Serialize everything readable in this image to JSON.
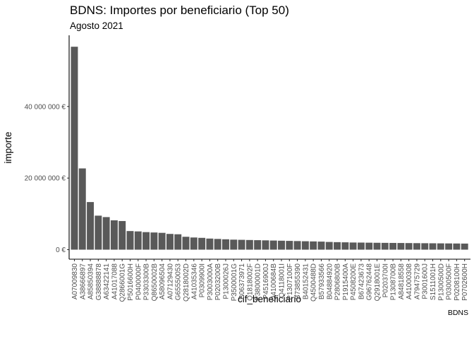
{
  "chart_data": {
    "type": "bar",
    "title": "BDNS: Importes por beneficiario (Top 50)",
    "subtitle": "Agosto 2021",
    "xlabel": "cif_beneficiario",
    "ylabel": "importe",
    "caption": "BDNS",
    "ylim": [
      0,
      58000000
    ],
    "y_ticks": [
      0,
      20000000,
      40000000
    ],
    "y_tick_labels": [
      "0 €",
      "20 000 000 €",
      "40 000 000 €"
    ],
    "grid": false,
    "bar_color": "#595959",
    "categories": [
      "A07009830",
      "A38666897",
      "A85850394",
      "G38888878",
      "A63422141",
      "A41017088",
      "Q2866001G",
      "P5016600H",
      "P0400000F",
      "P3303300B",
      "Q8650002B",
      "A58096504",
      "A07129430",
      "G65550053",
      "Q2818002D",
      "A41035346",
      "P0309900I",
      "P3003000A",
      "P0203200B",
      "P1300026J",
      "P3500001G",
      "B06373971",
      "Q1818002F",
      "P3800001D",
      "P4516900J",
      "Q4100684B",
      "Q4118001I",
      "P1307100F",
      "B73855390",
      "B40152431",
      "Q4500488D",
      "B57933566",
      "B04884920",
      "P2806800B",
      "P1915400A",
      "P4508200E",
      "B67423673",
      "G96762448",
      "Q2918001E",
      "P0203700I",
      "P1308700B",
      "A84818558",
      "A41000308",
      "A79475729",
      "P3001600J",
      "S1511001H",
      "P1300500D",
      "P0300500F",
      "P0208100H",
      "P0702600H"
    ],
    "values": [
      56700000,
      22700000,
      13300000,
      9500000,
      9100000,
      8200000,
      8000000,
      5200000,
      5100000,
      4900000,
      4800000,
      4700000,
      4400000,
      4300000,
      3600000,
      3400000,
      3300000,
      3100000,
      3000000,
      2900000,
      2800000,
      2750000,
      2700000,
      2650000,
      2600000,
      2550000,
      2500000,
      2450000,
      2400000,
      2350000,
      2300000,
      2250000,
      2150000,
      2100000,
      2050000,
      2000000,
      1980000,
      1950000,
      1920000,
      1900000,
      1880000,
      1860000,
      1840000,
      1820000,
      1800000,
      1780000,
      1760000,
      1740000,
      1720000,
      1700000
    ]
  }
}
